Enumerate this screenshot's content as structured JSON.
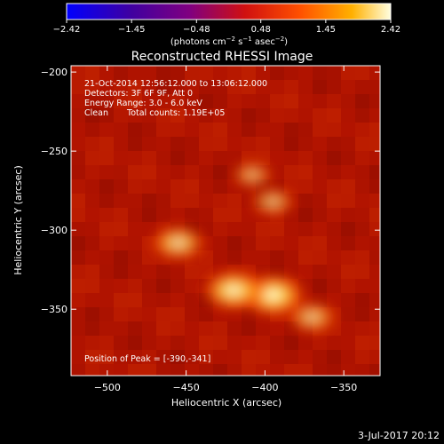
{
  "chart_data": {
    "type": "heatmap",
    "title": "Reconstructed RHESSI Image",
    "xlabel": "Heliocentric X (arcsec)",
    "ylabel": "Heliocentric Y (arcsec)",
    "xlim": [
      -523,
      -327
    ],
    "ylim": [
      -392,
      -196
    ],
    "x_ticks": [
      -500,
      -450,
      -400,
      -350
    ],
    "y_ticks": [
      -200,
      -250,
      -300,
      -350
    ],
    "x_tick_labels": [
      "−500",
      "−450",
      "−400",
      "−350"
    ],
    "y_tick_labels": [
      "−200",
      "−250",
      "−300",
      "−350"
    ],
    "colorbar": {
      "min": -2.42,
      "max": 2.42,
      "colormap": "blue-purple-red-yellow-white",
      "tick_values": [
        -2.42,
        -1.45,
        -0.48,
        0.48,
        1.45,
        2.42
      ],
      "tick_labels": [
        "−2.42",
        "−1.45",
        "−0.48",
        "0.48",
        "1.45",
        "2.42"
      ],
      "unit_prefix": "(photons cm",
      "unit_exp1": "−2",
      "unit_mid": " s",
      "unit_exp2": "−1",
      "unit_mid2": " asec",
      "unit_exp3": "−2",
      "unit_suffix": ")"
    },
    "sources": [
      {
        "x": -395,
        "y": -341,
        "intensity": 2.42
      },
      {
        "x": -420,
        "y": -338,
        "intensity": 2.2
      },
      {
        "x": -455,
        "y": -308,
        "intensity": 1.6
      },
      {
        "x": -370,
        "y": -355,
        "intensity": 1.2
      },
      {
        "x": -395,
        "y": -282,
        "intensity": 0.9
      },
      {
        "x": -408,
        "y": -265,
        "intensity": 0.7
      }
    ],
    "annotations": {
      "time": "21-Oct-2014 12:56:12.000 to 13:06:12.000",
      "detectors": "Detectors: 3F 6F 9F, Att 0",
      "energy": "Energy Range: 3.0 - 6.0 keV",
      "method": "Clean",
      "counts": "Total counts: 1.19E+05",
      "peak": "Position of Peak = [-390,-341]"
    }
  },
  "footer": {
    "date": "3-Jul-2017 20:12"
  },
  "colors": {
    "background": "#000000",
    "axis": "#ffffff"
  }
}
